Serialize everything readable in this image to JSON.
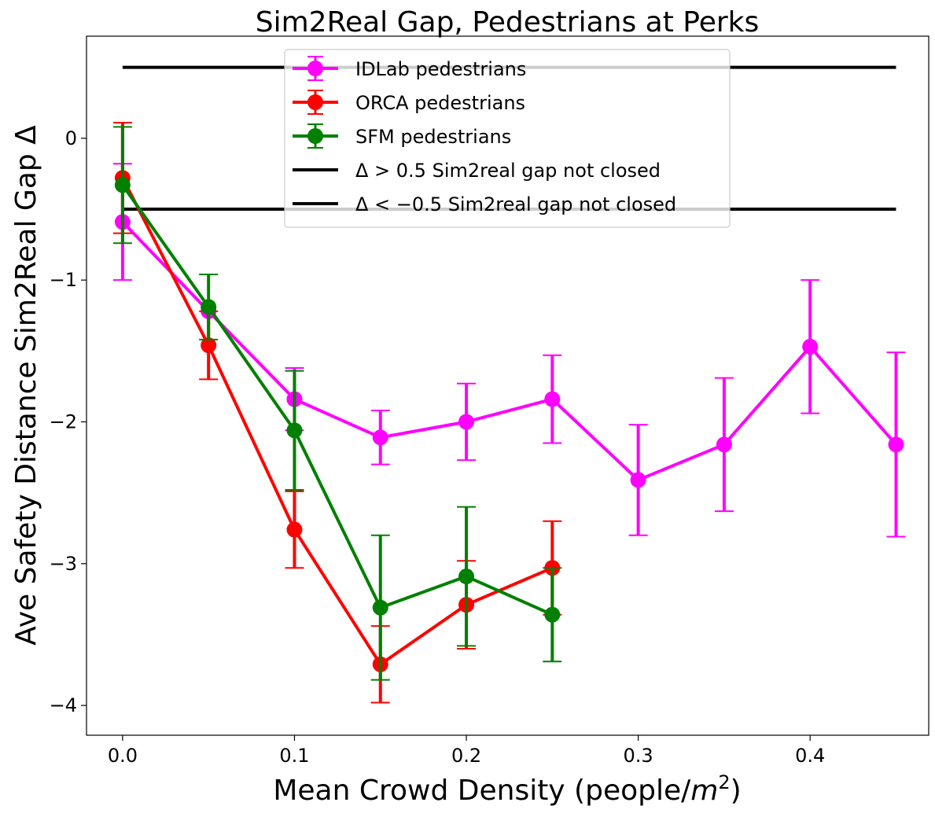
{
  "chart_data": {
    "type": "line",
    "title": "Sim2Real Gap, Pedestrians at Perks",
    "xlabel": "Mean Crowd Density (people/",
    "xlabel_math": "m",
    "xlabel_sup": "2",
    "xlabel_close": ")",
    "ylabel": "Ave Safety Distance Sim2Real Gap Δ",
    "xlim": [
      -0.021,
      0.469
    ],
    "ylim": [
      -4.21,
      0.72
    ],
    "xticks": [
      0.0,
      0.1,
      0.2,
      0.3,
      0.4
    ],
    "xtick_labels": [
      "0.0",
      "0.1",
      "0.2",
      "0.3",
      "0.4"
    ],
    "yticks": [
      0,
      -1,
      -2,
      -3,
      -4
    ],
    "ytick_labels": [
      "0",
      "−1",
      "−2",
      "−3",
      "−4"
    ],
    "grid": false,
    "legend_position": "upper center",
    "series": [
      {
        "name": "IDLab pedestrians",
        "color": "#ff00ff",
        "x": [
          0.0,
          0.05,
          0.1,
          0.15,
          0.2,
          0.25,
          0.3,
          0.35,
          0.4,
          0.45
        ],
        "y": [
          -0.59,
          -1.22,
          -1.84,
          -2.11,
          -2.0,
          -1.84,
          -2.41,
          -2.16,
          -1.47,
          -2.16
        ],
        "err": [
          0.41,
          0.0,
          0.22,
          0.19,
          0.27,
          0.31,
          0.39,
          0.47,
          0.47,
          0.65
        ]
      },
      {
        "name": "ORCA pedestrians",
        "color": "#ff0000",
        "x": [
          0.0,
          0.05,
          0.1,
          0.15,
          0.2,
          0.25
        ],
        "y": [
          -0.28,
          -1.46,
          -2.76,
          -3.71,
          -3.29,
          -3.03
        ],
        "err": [
          0.39,
          0.24,
          0.27,
          0.27,
          0.31,
          0.33
        ]
      },
      {
        "name": "SFM pedestrians",
        "color": "#008000",
        "x": [
          0.0,
          0.05,
          0.1,
          0.15,
          0.2,
          0.25
        ],
        "y": [
          -0.33,
          -1.19,
          -2.06,
          -3.31,
          -3.09,
          -3.36
        ],
        "err": [
          0.41,
          0.23,
          0.42,
          0.51,
          0.49,
          0.33
        ]
      }
    ],
    "hlines": [
      {
        "y": 0.5,
        "xmin": 0.0,
        "xmax": 0.45,
        "color": "#000000"
      },
      {
        "y": -0.5,
        "xmin": 0.0,
        "xmax": 0.45,
        "color": "#000000"
      }
    ],
    "legend": [
      {
        "kind": "errorbar",
        "series": 0,
        "label": "IDLab pedestrians"
      },
      {
        "kind": "errorbar",
        "series": 1,
        "label": "ORCA pedestrians"
      },
      {
        "kind": "errorbar",
        "series": 2,
        "label": "SFM pedestrians"
      },
      {
        "kind": "hline",
        "prefix": "Δ > 0.5",
        "label": " Sim2real gap not closed"
      },
      {
        "kind": "hline",
        "prefix": "Δ < −0.5",
        "label": " Sim2real gap not closed"
      }
    ]
  }
}
